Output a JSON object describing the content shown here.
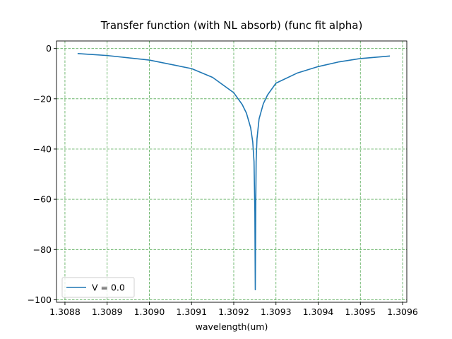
{
  "chart_data": {
    "type": "line",
    "title": "Transfer function (with NL absorb) (func fit alpha)",
    "xlabel": "wavelength(um)",
    "ylabel": "",
    "xlim": [
      1.30878,
      1.30961
    ],
    "ylim": [
      -101,
      3
    ],
    "xticks": [
      1.3088,
      1.3089,
      1.309,
      1.3091,
      1.3092,
      1.3093,
      1.3094,
      1.3095,
      1.3096
    ],
    "xtick_labels": [
      "1.3088",
      "1.3089",
      "1.3090",
      "1.3091",
      "1.3092",
      "1.3093",
      "1.3094",
      "1.3095",
      "1.3096"
    ],
    "yticks": [
      0,
      -20,
      -40,
      -60,
      -80,
      -100
    ],
    "ytick_labels": [
      "0",
      "−20",
      "−40",
      "−60",
      "−80",
      "−100"
    ],
    "grid": true,
    "grid_color": "#55aa55",
    "legend_position": "lower left",
    "series": [
      {
        "name": "V = 0.0",
        "color": "#1f77b4",
        "x": [
          1.30883,
          1.3089,
          1.309,
          1.3091,
          1.30915,
          1.3092,
          1.30922,
          1.30923,
          1.30924,
          1.309245,
          1.309248,
          1.30925,
          1.309251,
          1.309252,
          1.309253,
          1.309255,
          1.30926,
          1.30927,
          1.30928,
          1.3093,
          1.30935,
          1.3094,
          1.30945,
          1.3095,
          1.30957
        ],
        "y": [
          -2.0,
          -2.8,
          -4.6,
          -8.0,
          -11.5,
          -17.6,
          -22.3,
          -25.7,
          -31.5,
          -37.2,
          -45.0,
          -65.0,
          -96.0,
          -65.0,
          -45.0,
          -36.0,
          -28.0,
          -22.0,
          -18.5,
          -13.8,
          -9.8,
          -7.2,
          -5.3,
          -4.0,
          -3.0
        ]
      }
    ]
  }
}
